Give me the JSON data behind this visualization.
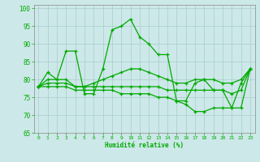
{
  "xlabel": "Humidité relative (%)",
  "background_color": "#cce8e8",
  "grid_color": "#aacccc",
  "line_color": "#00aa00",
  "xlim": [
    -0.5,
    23.5
  ],
  "ylim": [
    65,
    101
  ],
  "yticks": [
    65,
    70,
    75,
    80,
    85,
    90,
    95,
    100
  ],
  "xticks": [
    0,
    1,
    2,
    3,
    4,
    5,
    6,
    7,
    8,
    9,
    10,
    11,
    12,
    13,
    14,
    15,
    16,
    17,
    18,
    19,
    20,
    21,
    22,
    23
  ],
  "series": [
    [
      78,
      82,
      80,
      88,
      88,
      76,
      76,
      83,
      94,
      95,
      97,
      92,
      90,
      87,
      87,
      74,
      74,
      79,
      80,
      77,
      77,
      72,
      79,
      83
    ],
    [
      78,
      80,
      80,
      80,
      78,
      78,
      79,
      80,
      81,
      82,
      83,
      83,
      82,
      81,
      80,
      79,
      79,
      80,
      80,
      80,
      79,
      79,
      80,
      83
    ],
    [
      78,
      79,
      79,
      79,
      78,
      78,
      78,
      78,
      78,
      78,
      78,
      78,
      78,
      78,
      77,
      77,
      77,
      77,
      77,
      77,
      77,
      76,
      77,
      83
    ],
    [
      78,
      78,
      78,
      78,
      77,
      77,
      77,
      77,
      77,
      76,
      76,
      76,
      76,
      75,
      75,
      74,
      73,
      71,
      71,
      72,
      72,
      72,
      72,
      83
    ]
  ]
}
